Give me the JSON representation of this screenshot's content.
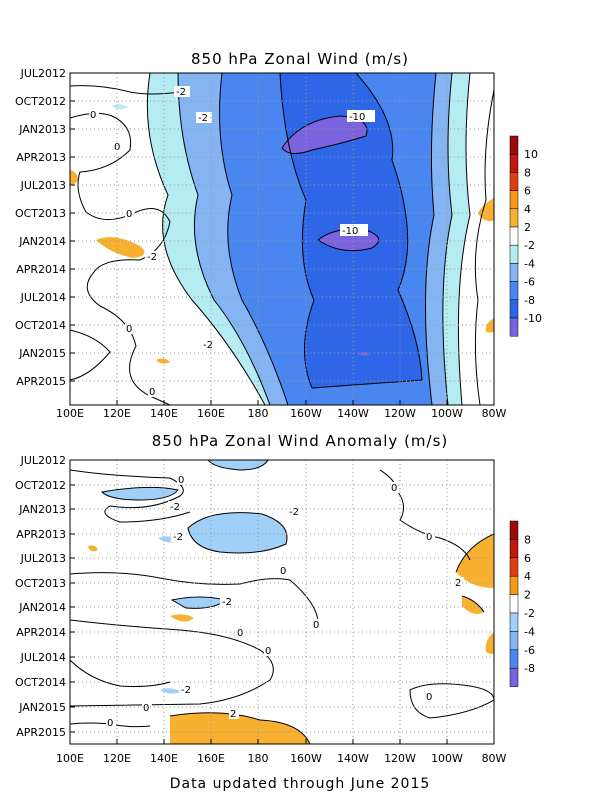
{
  "footer": "Data updated through June 2015",
  "colors": {
    "c_m10": "#7b63e0",
    "c_m8": "#2e66e8",
    "c_m6": "#4a86f0",
    "c_m4": "#84b4f2",
    "c_m2": "#b5ecf2",
    "c_0": "#ffffff",
    "c_p2": "#f8b030",
    "c_p4": "#f89818",
    "c_p6": "#e04010",
    "c_p8": "#c01810",
    "c_p10": "#9a0c0c",
    "anom_m2": "#a0cff8",
    "anom_p2": "#f8b030"
  },
  "chart_data": [
    {
      "type": "heatmap",
      "title": "850 hPa Zonal Wind (m/s)",
      "x_tick_labels": [
        "100E",
        "120E",
        "140E",
        "160E",
        "180",
        "160W",
        "140W",
        "120W",
        "100W",
        "80W"
      ],
      "y_tick_labels": [
        "JUL2012",
        "OCT2012",
        "JAN2013",
        "APR2013",
        "JUL2013",
        "OCT2013",
        "JAN2014",
        "APR2014",
        "JUL2014",
        "OCT2014",
        "JAN2015",
        "APR2015"
      ],
      "x_range": [
        "100E",
        "80W"
      ],
      "grid": true,
      "colorbar": {
        "placement": "right",
        "labels": [
          "10",
          "8",
          "6",
          "4",
          "2",
          "-2",
          "-4",
          "-6",
          "-8",
          "-10"
        ]
      },
      "contour_labels": [
        "-2",
        "-2",
        "0",
        "0",
        "-10",
        "0",
        "-2",
        "-10",
        "0",
        "-2",
        "0"
      ]
    },
    {
      "type": "heatmap",
      "title": "850 hPa Zonal Wind Anomaly (m/s)",
      "x_tick_labels": [
        "100E",
        "120E",
        "140E",
        "160E",
        "180",
        "160W",
        "140W",
        "120W",
        "100W",
        "80W"
      ],
      "y_tick_labels": [
        "JUL2012",
        "OCT2012",
        "JAN2013",
        "APR2013",
        "JUL2013",
        "OCT2013",
        "JAN2014",
        "APR2014",
        "JUL2014",
        "OCT2014",
        "JAN2015",
        "APR2015"
      ],
      "x_range": [
        "100E",
        "80W"
      ],
      "grid": true,
      "colorbar": {
        "placement": "right",
        "labels": [
          "8",
          "6",
          "4",
          "2",
          "-2",
          "-4",
          "-6",
          "-8"
        ]
      },
      "contour_labels": [
        "0",
        "0",
        "-2",
        "-2",
        "-2",
        "0",
        "0",
        "2",
        "-2",
        "0",
        "0",
        "0",
        "-2",
        "0",
        "0",
        "2",
        "0"
      ]
    }
  ]
}
